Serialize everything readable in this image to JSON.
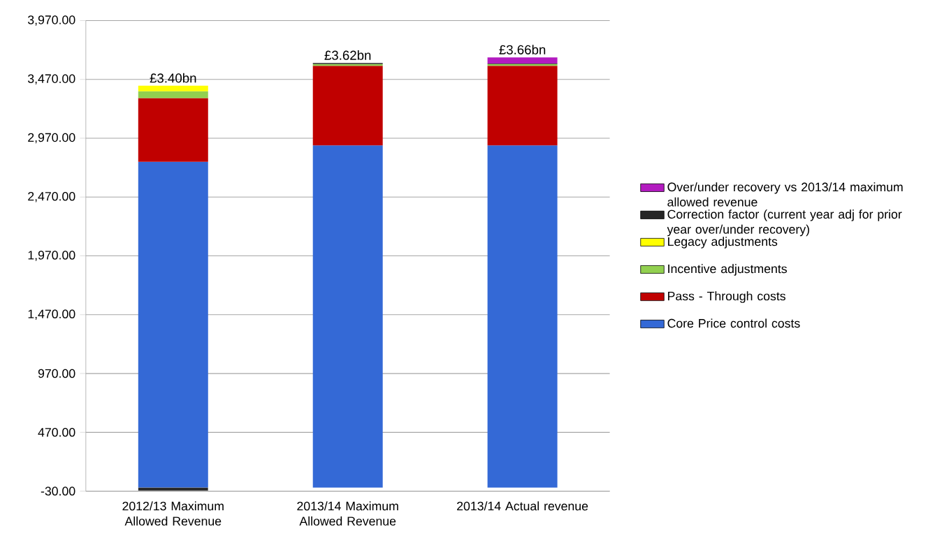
{
  "chart_data": {
    "type": "bar",
    "stacked": true,
    "categories": [
      "2012/13 Maximum Allowed Revenue",
      "2013/14 Maximum Allowed Revenue",
      "2013/14 Actual revenue"
    ],
    "series": [
      {
        "name": "Core Price control costs",
        "color": "#3469d6",
        "values": [
          2769,
          2909,
          2909
        ]
      },
      {
        "name": "Pass - Through costs",
        "color": "#c00000",
        "values": [
          542,
          676,
          676
        ]
      },
      {
        "name": "Incentive adjustments",
        "color": "#92d050",
        "values": [
          58,
          15,
          15
        ]
      },
      {
        "name": "Legacy adjustments",
        "color": "#ffff00",
        "values": [
          47,
          null,
          null
        ]
      },
      {
        "name": "Correction factor (current year adj for prior year over/under recovery)",
        "color": "#262626",
        "values": [
          -25,
          10,
          5
        ]
      },
      {
        "name": "Over/under recovery vs 2013/14 maximum allowed revenue",
        "color": "#b31bc0",
        "values": [
          null,
          null,
          52
        ]
      }
    ],
    "totals": [
      "£3.40bn",
      "£3.62bn",
      "£3.66bn"
    ],
    "ylim": [
      -30,
      3970
    ],
    "yticks": [
      {
        "value": -30,
        "label": "-30.00"
      },
      {
        "value": 470,
        "label": "470.00"
      },
      {
        "value": 970,
        "label": "970.00"
      },
      {
        "value": 1470,
        "label": "1,470.00"
      },
      {
        "value": 1970,
        "label": "1,970.00"
      },
      {
        "value": 2470,
        "label": "2,470.00"
      },
      {
        "value": 2970,
        "label": "2,970.00"
      },
      {
        "value": 3470,
        "label": "3,470.00"
      },
      {
        "value": 3970,
        "label": "3,970.00"
      }
    ],
    "grid": "y",
    "legend": "right"
  }
}
